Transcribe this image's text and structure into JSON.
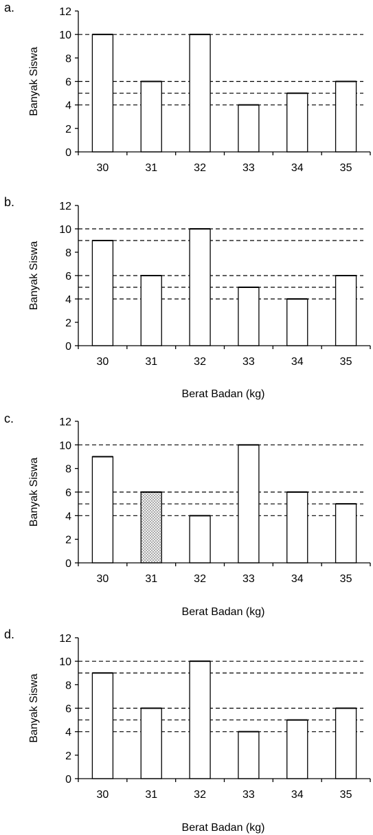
{
  "chart_data": [
    {
      "type": "bar",
      "panel_label": "a.",
      "categories": [
        "30",
        "31",
        "32",
        "33",
        "34",
        "35"
      ],
      "values": [
        10,
        6,
        10,
        4,
        5,
        6
      ],
      "ylabel": "Banyak Siswa",
      "xlabel": "",
      "ylim": [
        0,
        12
      ],
      "yticks": [
        0,
        2,
        4,
        6,
        8,
        10,
        12
      ],
      "reference_lines": [
        10,
        6,
        5,
        4
      ],
      "highlight_index": null,
      "grid": false,
      "bar_color": "#ffffff",
      "line_color": "#000000"
    },
    {
      "type": "bar",
      "panel_label": "b.",
      "categories": [
        "30",
        "31",
        "32",
        "33",
        "34",
        "35"
      ],
      "values": [
        9,
        6,
        10,
        5,
        4,
        6
      ],
      "ylabel": "Banyak Siswa",
      "xlabel": "Berat Badan (kg)",
      "ylim": [
        0,
        12
      ],
      "yticks": [
        0,
        2,
        4,
        6,
        8,
        10,
        12
      ],
      "reference_lines": [
        10,
        9,
        6,
        5,
        4
      ],
      "highlight_index": null,
      "grid": false,
      "bar_color": "#ffffff",
      "line_color": "#000000"
    },
    {
      "type": "bar",
      "panel_label": "c.",
      "categories": [
        "30",
        "31",
        "32",
        "33",
        "34",
        "35"
      ],
      "values": [
        9,
        6,
        4,
        10,
        6,
        5
      ],
      "ylabel": "Banyak Siswa",
      "xlabel": "Berat Badan (kg)",
      "ylim": [
        0,
        12
      ],
      "yticks": [
        0,
        2,
        4,
        6,
        8,
        10,
        12
      ],
      "reference_lines": [
        10,
        6,
        5,
        4
      ],
      "highlight_index": 1,
      "highlight_color": "#d9d9d9",
      "grid": false,
      "bar_color": "#ffffff",
      "line_color": "#000000"
    },
    {
      "type": "bar",
      "panel_label": "d.",
      "categories": [
        "30",
        "31",
        "32",
        "33",
        "34",
        "35"
      ],
      "values": [
        9,
        6,
        10,
        4,
        5,
        6
      ],
      "ylabel": "Banyak Siswa",
      "xlabel": "Berat Badan (kg)",
      "ylim": [
        0,
        12
      ],
      "yticks": [
        0,
        2,
        4,
        6,
        8,
        10,
        12
      ],
      "reference_lines": [
        10,
        9,
        6,
        5,
        4
      ],
      "highlight_index": null,
      "grid": false,
      "bar_color": "#ffffff",
      "line_color": "#000000"
    }
  ]
}
